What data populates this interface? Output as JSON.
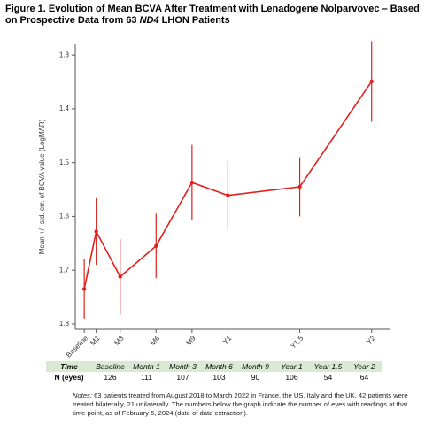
{
  "chart_data": {
    "type": "line",
    "title": [
      "Figure 1. Evolution of Mean BCVA After Treatment with Lenadogene Nolparvovec – Based on Prospective Data from 63 ",
      "ND4",
      " LHON Patients"
    ],
    "y_label": "Mean +/- std. err. of BCVA value (LogMAR)",
    "x": [
      0,
      1,
      3,
      6,
      9,
      12,
      18,
      24
    ],
    "xlim": [
      -0.75,
      25.5
    ],
    "xticks": [
      {
        "value": 0,
        "label": "Baseline"
      },
      {
        "value": 1,
        "label": "M1"
      },
      {
        "value": 3,
        "label": "M3"
      },
      {
        "value": 6,
        "label": "M6"
      },
      {
        "value": 9,
        "label": "M9"
      },
      {
        "value": 12,
        "label": "Y1"
      },
      {
        "value": 18,
        "label": "Y1.5"
      },
      {
        "value": 24,
        "label": "Y2"
      }
    ],
    "ylim": [
      1.28,
      1.81
    ],
    "y_inverted": true,
    "yticks": [
      1.3,
      1.4,
      1.5,
      1.6,
      1.7,
      1.8
    ],
    "series": [
      {
        "color": "#e0201b",
        "values": [
          1.735,
          1.628,
          1.712,
          1.655,
          1.537,
          1.561,
          1.545,
          1.349
        ],
        "errors": [
          0.055,
          0.062,
          0.07,
          0.06,
          0.07,
          0.064,
          0.055,
          0.075
        ]
      }
    ],
    "table": {
      "header": "Time",
      "labels": [
        "Baseline",
        "Month 1",
        "Month 3",
        "Month 6",
        "Month 9",
        "Year 1",
        "Year 1.5",
        "Year 2"
      ],
      "row_label": "N (eyes)",
      "counts": [
        126,
        111,
        107,
        103,
        90,
        106,
        54,
        64
      ]
    },
    "notes_label": "Notes:",
    "notes": "63 patients treated from August 2018 to March 2022 in France, the US, Italy and the UK. 42 patients were treated bilaterally, 21 unilaterally. The numbers below the graph indicate the number of eyes with readings at that time point, as of February 5, 2024 (date of data extraction)."
  }
}
